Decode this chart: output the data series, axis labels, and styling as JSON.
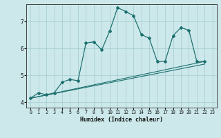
{
  "title": "",
  "xlabel": "Humidex (Indice chaleur)",
  "ylabel": "",
  "background_color": "#cce8ea",
  "grid_color": "#aad0d4",
  "line_color": "#1e7070",
  "xlim": [
    -0.5,
    23.5
  ],
  "ylim": [
    3.8,
    7.65
  ],
  "xticks": [
    0,
    1,
    2,
    3,
    4,
    5,
    6,
    7,
    8,
    9,
    10,
    11,
    12,
    13,
    14,
    15,
    16,
    17,
    18,
    19,
    20,
    21,
    22,
    23
  ],
  "yticks": [
    4,
    5,
    6,
    7
  ],
  "line1_x": [
    0,
    1,
    2,
    3,
    4,
    5,
    6,
    7,
    8,
    9,
    10,
    11,
    12,
    13,
    14,
    15,
    16,
    17,
    18,
    19,
    20,
    21,
    22
  ],
  "line1_y": [
    4.15,
    4.35,
    4.28,
    4.35,
    4.75,
    4.85,
    4.8,
    6.2,
    6.25,
    5.95,
    6.65,
    7.52,
    7.38,
    7.22,
    6.52,
    6.38,
    5.52,
    5.52,
    6.48,
    6.78,
    6.68,
    5.52,
    5.52
  ],
  "line2_x": [
    0,
    22
  ],
  "line2_y": [
    4.15,
    5.52
  ],
  "line3_x": [
    0,
    22
  ],
  "line3_y": [
    4.15,
    5.42
  ],
  "figsize": [
    3.2,
    2.0
  ],
  "dpi": 100
}
